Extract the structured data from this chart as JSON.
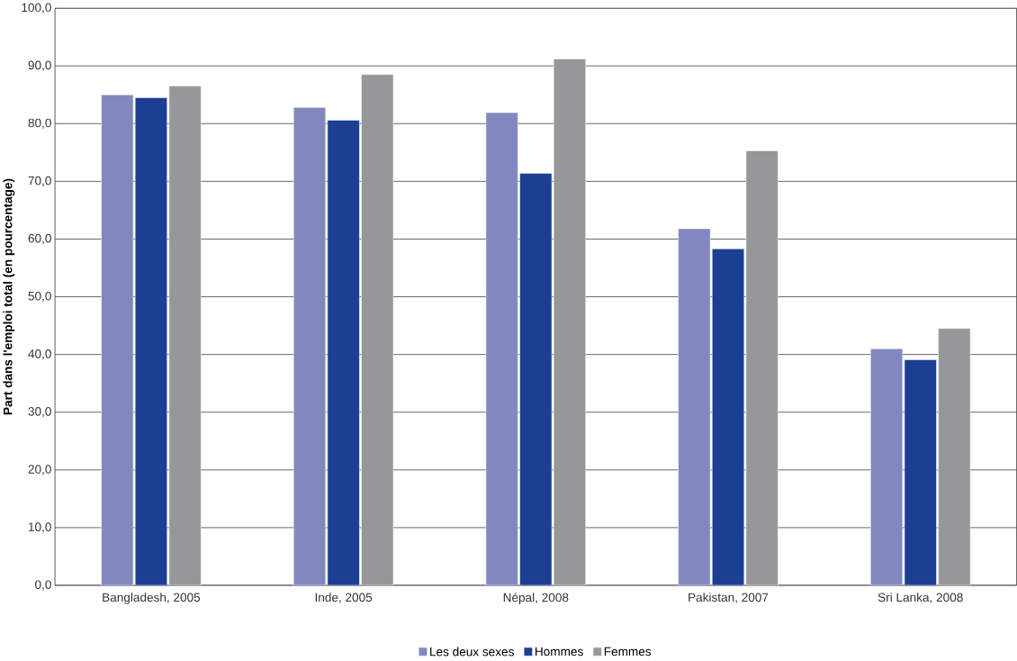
{
  "chart_data": {
    "type": "bar",
    "ylabel": "Part dans l'emploi total (en pourcentage)",
    "categories": [
      "Bangladesh, 2005",
      "Inde, 2005",
      "Népal, 2008",
      "Pakistan, 2007",
      "Sri Lanka, 2008"
    ],
    "series": [
      {
        "name": "Les deux sexes",
        "color": "#8288bf",
        "values": [
          85.0,
          82.8,
          81.9,
          61.8,
          41.0
        ]
      },
      {
        "name": "Hommes",
        "color": "#1c3f94",
        "values": [
          84.5,
          80.6,
          71.4,
          58.3,
          39.1
        ]
      },
      {
        "name": "Femmes",
        "color": "#96979b",
        "values": [
          86.5,
          88.5,
          91.2,
          75.3,
          44.5
        ]
      }
    ],
    "ylim": [
      0,
      100
    ],
    "yticks": [
      {
        "value": 0,
        "label": "0,0"
      },
      {
        "value": 10,
        "label": "10,0"
      },
      {
        "value": 20,
        "label": "20,0"
      },
      {
        "value": 30,
        "label": "30,0"
      },
      {
        "value": 40,
        "label": "40,0"
      },
      {
        "value": 50,
        "label": "50,0"
      },
      {
        "value": 60,
        "label": "60,0"
      },
      {
        "value": 70,
        "label": "70,0"
      },
      {
        "value": 80,
        "label": "80,0"
      },
      {
        "value": 90,
        "label": "90,0"
      },
      {
        "value": 100,
        "label": "100,0"
      }
    ],
    "grid": "y",
    "legend": "bottom"
  }
}
